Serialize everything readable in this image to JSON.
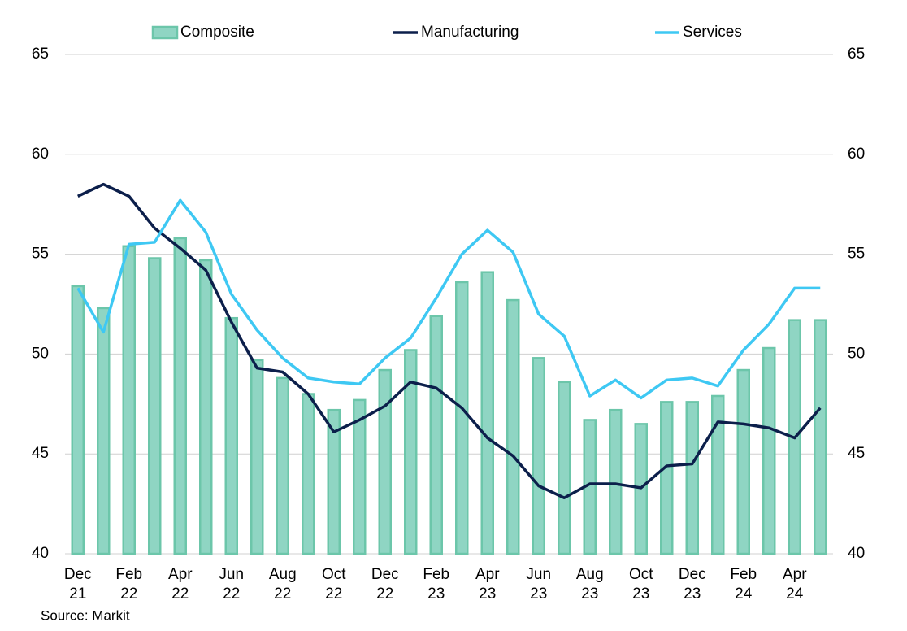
{
  "chart_data": {
    "type": "bar_line",
    "categories": [
      "Dec 21",
      null,
      "Feb 22",
      null,
      "Apr 22",
      null,
      "Jun 22",
      null,
      "Aug 22",
      null,
      "Oct 22",
      null,
      "Dec 22",
      null,
      "Feb 23",
      null,
      "Apr 23",
      null,
      "Jun 23",
      null,
      "Aug 23",
      null,
      "Oct 23",
      null,
      "Dec 23",
      null,
      "Feb 24",
      null,
      "Apr 24",
      null
    ],
    "series": [
      {
        "name": "Composite",
        "type": "bar",
        "color": "#8fd5c3",
        "edge": "#6cc6aa",
        "values": [
          53.4,
          52.3,
          55.4,
          54.8,
          55.8,
          54.7,
          51.8,
          49.7,
          48.8,
          48.0,
          47.2,
          47.7,
          49.2,
          50.2,
          51.9,
          53.6,
          54.1,
          52.7,
          49.8,
          48.6,
          46.7,
          47.2,
          46.5,
          47.6,
          47.6,
          47.9,
          49.2,
          50.3,
          51.7,
          51.7
        ]
      },
      {
        "name": "Manufacturing",
        "type": "line",
        "color": "#0c1f4b",
        "values": [
          57.9,
          58.5,
          57.9,
          56.3,
          55.3,
          54.2,
          51.6,
          49.3,
          49.1,
          48.0,
          46.1,
          46.7,
          47.4,
          48.6,
          48.3,
          47.3,
          45.8,
          44.9,
          43.4,
          42.8,
          43.5,
          43.5,
          43.3,
          44.4,
          44.5,
          46.6,
          46.5,
          46.3,
          45.8,
          47.3
        ]
      },
      {
        "name": "Services",
        "type": "line",
        "color": "#3ec8f3",
        "values": [
          53.3,
          51.1,
          55.5,
          55.6,
          57.7,
          56.1,
          53.0,
          51.2,
          49.8,
          48.8,
          48.6,
          48.5,
          49.8,
          50.8,
          52.8,
          55.0,
          56.2,
          55.1,
          52.0,
          50.9,
          47.9,
          48.7,
          47.8,
          48.7,
          48.8,
          48.4,
          50.2,
          51.5,
          53.3,
          53.3
        ]
      }
    ],
    "ylim": [
      40,
      65
    ],
    "yticks": [
      40,
      45,
      50,
      55,
      60,
      65
    ],
    "y2lim": [
      40,
      65
    ],
    "y2ticks": [
      40,
      45,
      50,
      55,
      60,
      65
    ],
    "grid": true,
    "legend": "top",
    "source": "Source: Markit"
  }
}
